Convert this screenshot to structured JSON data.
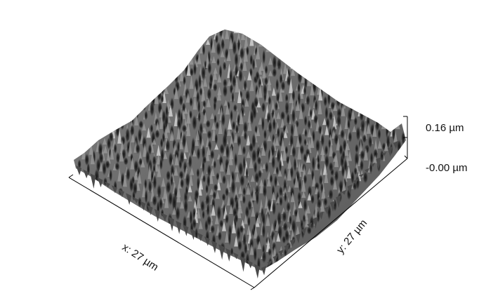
{
  "scale_bar": {
    "max_label": "0.16 µm",
    "min_label": "-0.00 µm"
  },
  "axes": {
    "x_label": "x: 27 µm",
    "y_label": "y: 27 µm"
  },
  "colors": {
    "surface_base": "#6e6e6e",
    "surface_dark": "#1e1e1e",
    "surface_light": "#e6e6e6",
    "axis": "#000000",
    "background": "#ffffff"
  }
}
